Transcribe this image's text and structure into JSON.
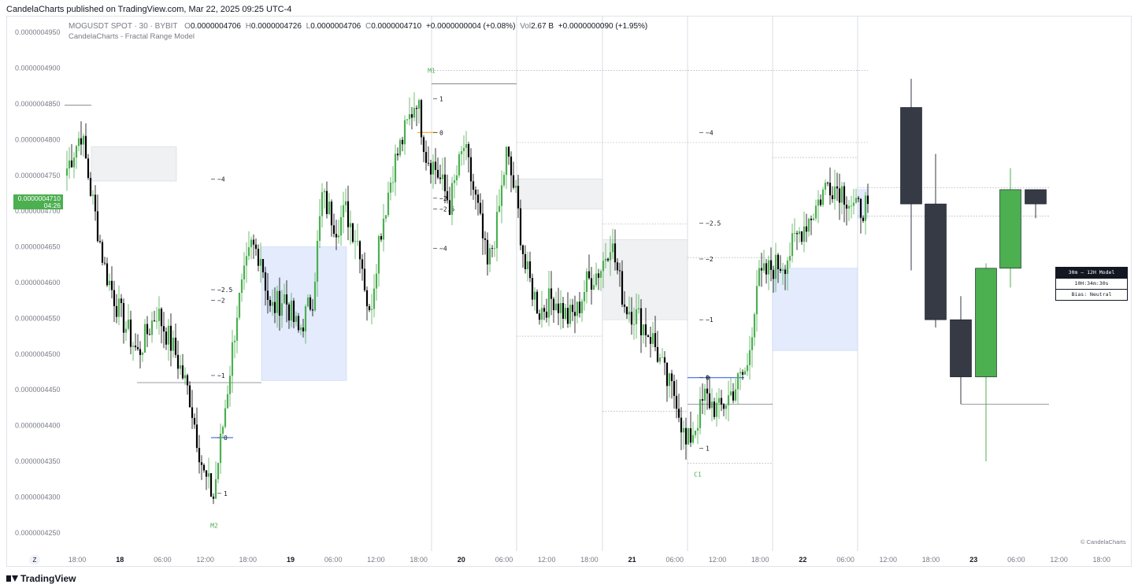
{
  "header": {
    "published_by": "CandelaCharts published on TradingView.com, Mar 22, 2025 09:25 UTC-4"
  },
  "legend": {
    "symbol": "MOGUSDT SPOT · 30 · BYBIT",
    "o_label": "O",
    "o": "0.0000004706",
    "h_label": "H",
    "h": "0.0000004726",
    "l_label": "L",
    "l": "0.0000004706",
    "c_label": "C",
    "c": "0.0000004710",
    "change": "+0.0000000004 (+0.08%)",
    "vol_label": "Vol",
    "vol": "2.67 B",
    "vol_change": "+0.0000000090 (+1.95%)",
    "indicator": "CandelaCharts - Fractal Range Model"
  },
  "price_badge": {
    "price": "0.0000004710",
    "countdown": "04:26"
  },
  "info_table": {
    "title": "30m — 12H Model",
    "timer": "10H:34m:30s",
    "bias": "Bias: Neutral"
  },
  "copyright": "© CandelaCharts",
  "footer": {
    "brand": "TradingView",
    "z_button": "Z"
  },
  "colors": {
    "up": "#4caf50",
    "down": "#000000",
    "htf_down": "#363a45",
    "gray_zone": "#f0f1f3",
    "blue_zone": "#e3ebfd",
    "badge": "#4caf50",
    "blue_line": "#1e53e5",
    "orange_line": "#ff9800"
  },
  "chart_data": {
    "type": "candlestick",
    "ylim": [
      4.22e-07,
      4.97e-07
    ],
    "y_ticks": [
      "0.0000004250",
      "0.0000004300",
      "0.0000004350",
      "0.0000004400",
      "0.0000004450",
      "0.0000004500",
      "0.0000004550",
      "0.0000004600",
      "0.0000004650",
      "0.0000004700",
      "0.0000004750",
      "0.0000004800",
      "0.0000004850",
      "0.0000004900",
      "0.0000004950"
    ],
    "x_ticks": [
      {
        "label": "18:00",
        "bold": false
      },
      {
        "label": "18",
        "bold": true
      },
      {
        "label": "06:00",
        "bold": false
      },
      {
        "label": "12:00",
        "bold": false
      },
      {
        "label": "18:00",
        "bold": false
      },
      {
        "label": "19",
        "bold": true
      },
      {
        "label": "06:00",
        "bold": false
      },
      {
        "label": "12:00",
        "bold": false
      },
      {
        "label": "18:00",
        "bold": false
      },
      {
        "label": "20",
        "bold": true
      },
      {
        "label": "06:00",
        "bold": false
      },
      {
        "label": "12:00",
        "bold": false
      },
      {
        "label": "18:00",
        "bold": false
      },
      {
        "label": "21",
        "bold": true
      },
      {
        "label": "06:00",
        "bold": false
      },
      {
        "label": "12:00",
        "bold": false
      },
      {
        "label": "18:00",
        "bold": false
      },
      {
        "label": "22",
        "bold": true
      },
      {
        "label": "06:00",
        "bold": false
      },
      {
        "label": "12:00",
        "bold": false
      },
      {
        "label": "18:00",
        "bold": false
      },
      {
        "label": "23",
        "bold": true
      },
      {
        "label": "06:00",
        "bold": false
      },
      {
        "label": "12:00",
        "bold": false
      },
      {
        "label": "18:00",
        "bold": false
      }
    ],
    "close_anchors": [
      [
        0,
        4.76e-07
      ],
      [
        6,
        4.81e-07
      ],
      [
        10,
        4.73e-07
      ],
      [
        16,
        4.62e-07
      ],
      [
        22,
        4.56e-07
      ],
      [
        30,
        4.5e-07
      ],
      [
        38,
        4.56e-07
      ],
      [
        46,
        4.5e-07
      ],
      [
        52,
        4.44e-07
      ],
      [
        58,
        4.33e-07
      ],
      [
        62,
        4.3e-07
      ],
      [
        66,
        4.4e-07
      ],
      [
        72,
        4.56e-07
      ],
      [
        78,
        4.65e-07
      ],
      [
        82,
        4.64e-07
      ],
      [
        86,
        4.56e-07
      ],
      [
        92,
        4.58e-07
      ],
      [
        98,
        4.53e-07
      ],
      [
        104,
        4.58e-07
      ],
      [
        108,
        4.72e-07
      ],
      [
        114,
        4.68e-07
      ],
      [
        118,
        4.7e-07
      ],
      [
        124,
        4.65e-07
      ],
      [
        128,
        4.55e-07
      ],
      [
        132,
        4.66e-07
      ],
      [
        138,
        4.76e-07
      ],
      [
        144,
        4.82e-07
      ],
      [
        148,
        4.86e-07
      ],
      [
        152,
        4.78e-07
      ],
      [
        156,
        4.76e-07
      ],
      [
        162,
        4.71e-07
      ],
      [
        168,
        4.79e-07
      ],
      [
        174,
        4.7e-07
      ],
      [
        178,
        4.62e-07
      ],
      [
        182,
        4.68e-07
      ],
      [
        186,
        4.78e-07
      ],
      [
        190,
        4.72e-07
      ],
      [
        194,
        4.62e-07
      ],
      [
        200,
        4.56e-07
      ],
      [
        206,
        4.58e-07
      ],
      [
        212,
        4.55e-07
      ],
      [
        216,
        4.56e-07
      ],
      [
        220,
        4.6e-07
      ],
      [
        226,
        4.62e-07
      ],
      [
        230,
        4.66e-07
      ],
      [
        236,
        4.57e-07
      ],
      [
        242,
        4.55e-07
      ],
      [
        248,
        4.52e-07
      ],
      [
        254,
        4.46e-07
      ],
      [
        258,
        4.44e-07
      ],
      [
        262,
        4.37e-07
      ],
      [
        266,
        4.4e-07
      ],
      [
        270,
        4.44e-07
      ],
      [
        276,
        4.42e-07
      ],
      [
        282,
        4.45e-07
      ],
      [
        288,
        4.48e-07
      ],
      [
        292,
        4.6e-07
      ],
      [
        298,
        4.62e-07
      ],
      [
        304,
        4.63e-07
      ],
      [
        310,
        4.67e-07
      ],
      [
        316,
        4.7e-07
      ],
      [
        322,
        4.74e-07
      ],
      [
        328,
        4.73e-07
      ],
      [
        334,
        4.7e-07
      ],
      [
        339,
        4.71e-07
      ]
    ],
    "htf_candles": [
      {
        "o": 4.845e-07,
        "h": 4.885e-07,
        "l": 4.617e-07,
        "c": 4.71e-07
      },
      {
        "o": 4.71e-07,
        "h": 4.78e-07,
        "l": 4.537e-07,
        "c": 4.548e-07
      },
      {
        "o": 4.548e-07,
        "h": 4.581e-07,
        "l": 4.43e-07,
        "c": 4.468e-07
      },
      {
        "o": 4.468e-07,
        "h": 4.627e-07,
        "l": 4.35e-07,
        "c": 4.62e-07
      },
      {
        "o": 4.62e-07,
        "h": 4.76e-07,
        "l": 4.593e-07,
        "c": 4.73e-07
      },
      {
        "o": 4.73e-07,
        "h": 4.73e-07,
        "l": 4.69e-07,
        "c": 4.71e-07
      }
    ],
    "fractal_levels": [
      {
        "label": "−4",
        "price": 4.745e-07
      },
      {
        "label": "−2.5",
        "price": 4.59e-07
      },
      {
        "label": "−2",
        "price": 4.575e-07
      },
      {
        "label": "−1",
        "price": 4.47e-07
      },
      {
        "label": "1",
        "price": 4.857e-07
      },
      {
        "label": "0",
        "price": 4.81e-07
      },
      {
        "label": "−2",
        "price": 4.718e-07
      },
      {
        "label": "−2.5",
        "price": 4.703e-07
      },
      {
        "label": "−4",
        "price": 4.648e-07
      },
      {
        "label": "−4",
        "price": 4.81e-07
      },
      {
        "label": "−2.5",
        "price": 4.683e-07
      },
      {
        "label": "−2",
        "price": 4.633e-07
      },
      {
        "label": "−1",
        "price": 4.548e-07
      },
      {
        "label": "0",
        "price": 4.383e-07
      },
      {
        "label": "1",
        "price": 4.305e-07
      },
      {
        "label": "0",
        "price": 4.467e-07
      },
      {
        "label": "1",
        "price": 4.368e-07
      }
    ],
    "pivot_labels": [
      {
        "label": "M1",
        "price": 4.897e-07
      },
      {
        "label": "M2",
        "price": 4.26e-07
      },
      {
        "label": "C1",
        "price": 4.332e-07
      }
    ]
  }
}
